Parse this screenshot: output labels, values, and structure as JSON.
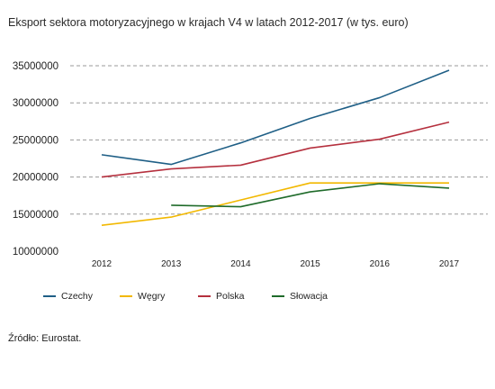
{
  "chart_data": {
    "type": "line",
    "title": "Eksport sektora motoryzacyjnego w krajach V4 w latach 2012-2017 (w tys. euro)",
    "categories": [
      "2012",
      "2013",
      "2014",
      "2015",
      "2016",
      "2017"
    ],
    "ylim": [
      10000000,
      35000000
    ],
    "yticks": [
      "35000000",
      "30000000",
      "25000000",
      "20000000",
      "15000000",
      "10000000"
    ],
    "grid": "horizontal-dashed",
    "legend_position": "bottom",
    "series": [
      {
        "name": "Czechy",
        "color": "#1f5f86",
        "values": [
          23000000,
          21700000,
          24600000,
          27900000,
          30700000,
          34400000
        ]
      },
      {
        "name": "Węgry",
        "color": "#f2b800",
        "values": [
          13500000,
          14600000,
          16900000,
          19200000,
          19200000,
          19200000
        ]
      },
      {
        "name": "Polska",
        "color": "#b5303e",
        "values": [
          20000000,
          21100000,
          21600000,
          23900000,
          25100000,
          27400000
        ]
      },
      {
        "name": "Słowacja",
        "color": "#1f6b2a",
        "values": [
          null,
          16200000,
          16000000,
          18000000,
          19100000,
          18500000
        ]
      }
    ]
  },
  "source": "Źródło: Eurostat."
}
